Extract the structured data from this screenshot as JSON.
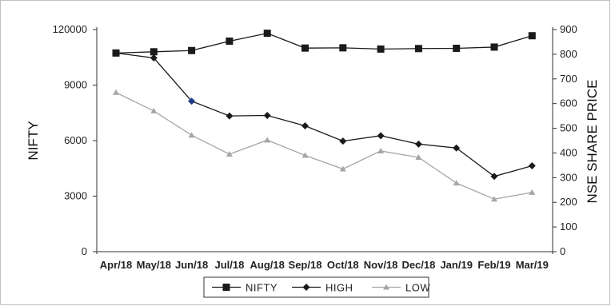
{
  "chart_data": {
    "type": "line",
    "categories": [
      "Apr/18",
      "May/18",
      "Jun/18",
      "Jul/18",
      "Aug/18",
      "Sep/18",
      "Oct/18",
      "Nov/18",
      "Dec/18",
      "Jan/19",
      "Feb/19",
      "Mar/19"
    ],
    "ylabel": "NIFTY",
    "y2label": "NSE SHARE PRICE",
    "y_ticks": [
      "0",
      "3000",
      "6000",
      "9000",
      "120000"
    ],
    "y2_ticks": [
      "0",
      "100",
      "200",
      "300",
      "400",
      "500",
      "600",
      "700",
      "800",
      "900"
    ],
    "ylim": [
      0,
      900
    ],
    "y2lim": [
      0,
      900
    ],
    "series": [
      {
        "name": "NIFTY",
        "axis": "left",
        "marker": "square",
        "color": "#1a1a1a",
        "values": [
          805,
          810,
          815,
          853,
          885,
          825,
          826,
          821,
          823,
          824,
          829,
          875
        ]
      },
      {
        "name": "HIGH",
        "axis": "right",
        "marker": "diamond",
        "color": "#1a1a1a",
        "values": [
          805,
          785,
          610,
          550,
          552,
          510,
          448,
          470,
          436,
          420,
          305,
          348
        ]
      },
      {
        "name": "LOW",
        "axis": "right",
        "marker": "triangle",
        "color": "#a6a6a6",
        "values": [
          645,
          570,
          472,
          395,
          452,
          390,
          335,
          408,
          382,
          278,
          213,
          240
        ]
      }
    ],
    "legend": {
      "position": "bottom"
    },
    "grid": false
  }
}
